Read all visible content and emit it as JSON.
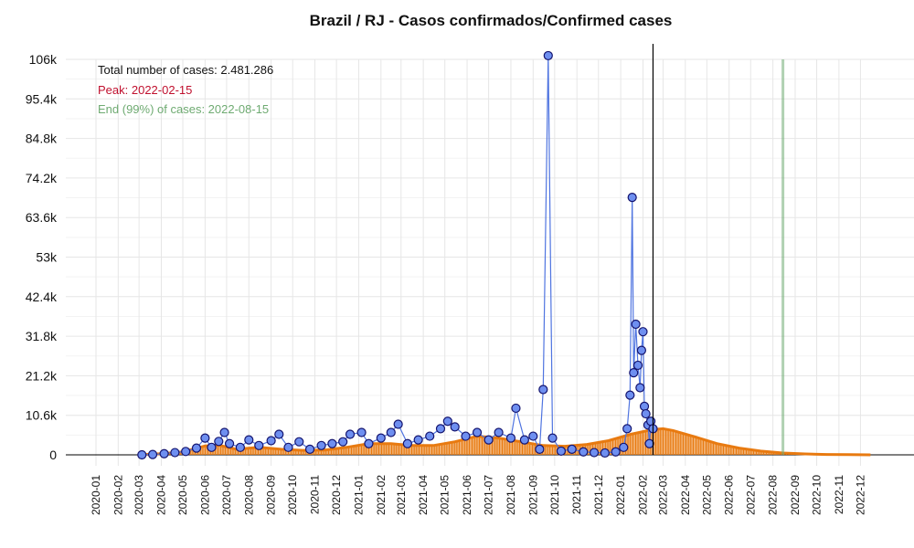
{
  "chart_data": {
    "type": "line",
    "title": "Brazil / RJ - Casos confirmados/Confirmed cases",
    "xlabel": "",
    "ylabel": "",
    "grid": true,
    "x_range": [
      "2020-01-01",
      "2022-12-31"
    ],
    "ylim": [
      0,
      106000
    ],
    "y_ticks": [
      0,
      10600,
      21200,
      31800,
      42400,
      53000,
      63600,
      74200,
      84800,
      95400,
      106000
    ],
    "y_tick_labels": [
      "0",
      "10.6k",
      "21.2k",
      "31.8k",
      "42.4k",
      "53k",
      "63.6k",
      "74.2k",
      "84.8k",
      "95.4k",
      "106k"
    ],
    "x_tick_labels": [
      "2020-01",
      "2020-02",
      "2020-03",
      "2020-04",
      "2020-05",
      "2020-06",
      "2020-07",
      "2020-08",
      "2020-09",
      "2020-10",
      "2020-11",
      "2020-12",
      "2021-01",
      "2021-02",
      "2021-03",
      "2021-04",
      "2021-05",
      "2021-06",
      "2021-07",
      "2021-08",
      "2021-09",
      "2021-10",
      "2021-11",
      "2021-12",
      "2022-01",
      "2022-02",
      "2022-03",
      "2022-04",
      "2022-05",
      "2022-06",
      "2022-07",
      "2022-08",
      "2022-09",
      "2022-10",
      "2022-11",
      "2022-12"
    ],
    "annotations": {
      "total": "Total number of cases: 2.481.286",
      "peak": "Peak: 2022-02-15",
      "end": "End (99%) of cases: 2022-08-15"
    },
    "vertical_lines": {
      "today": "2022-02-15",
      "end": "2022-08-15"
    },
    "series": [
      {
        "kind": "observed",
        "points": [
          [
            "2020-03-05",
            0
          ],
          [
            "2020-03-20",
            100
          ],
          [
            "2020-04-05",
            300
          ],
          [
            "2020-04-20",
            600
          ],
          [
            "2020-05-05",
            900
          ],
          [
            "2020-05-20",
            1800
          ],
          [
            "2020-06-01",
            4500
          ],
          [
            "2020-06-10",
            2000
          ],
          [
            "2020-06-20",
            3600
          ],
          [
            "2020-06-28",
            6000
          ],
          [
            "2020-07-05",
            3000
          ],
          [
            "2020-07-20",
            2000
          ],
          [
            "2020-08-01",
            4000
          ],
          [
            "2020-08-15",
            2500
          ],
          [
            "2020-09-01",
            3800
          ],
          [
            "2020-09-12",
            5500
          ],
          [
            "2020-09-25",
            2000
          ],
          [
            "2020-10-10",
            3500
          ],
          [
            "2020-10-25",
            1500
          ],
          [
            "2020-11-10",
            2500
          ],
          [
            "2020-11-25",
            3000
          ],
          [
            "2020-12-10",
            3500
          ],
          [
            "2020-12-20",
            5500
          ],
          [
            "2021-01-05",
            6000
          ],
          [
            "2021-01-15",
            3000
          ],
          [
            "2021-02-01",
            4500
          ],
          [
            "2021-02-15",
            6000
          ],
          [
            "2021-02-25",
            8200
          ],
          [
            "2021-03-10",
            3000
          ],
          [
            "2021-03-25",
            4000
          ],
          [
            "2021-04-10",
            5000
          ],
          [
            "2021-04-25",
            7000
          ],
          [
            "2021-05-05",
            9000
          ],
          [
            "2021-05-15",
            7500
          ],
          [
            "2021-05-30",
            5000
          ],
          [
            "2021-06-15",
            6000
          ],
          [
            "2021-07-01",
            4000
          ],
          [
            "2021-07-15",
            6000
          ],
          [
            "2021-08-01",
            4500
          ],
          [
            "2021-08-08",
            12500
          ],
          [
            "2021-08-20",
            4000
          ],
          [
            "2021-09-01",
            5000
          ],
          [
            "2021-09-10",
            1500
          ],
          [
            "2021-09-15",
            17500
          ],
          [
            "2021-09-22",
            107000
          ],
          [
            "2021-09-28",
            4500
          ],
          [
            "2021-10-10",
            1000
          ],
          [
            "2021-10-25",
            1500
          ],
          [
            "2021-11-10",
            800
          ],
          [
            "2021-11-25",
            600
          ],
          [
            "2021-12-10",
            500
          ],
          [
            "2021-12-25",
            800
          ],
          [
            "2022-01-05",
            2000
          ],
          [
            "2022-01-10",
            7000
          ],
          [
            "2022-01-14",
            16000
          ],
          [
            "2022-01-17",
            69000
          ],
          [
            "2022-01-19",
            22000
          ],
          [
            "2022-01-22",
            35000
          ],
          [
            "2022-01-25",
            24000
          ],
          [
            "2022-01-28",
            18000
          ],
          [
            "2022-01-30",
            28000
          ],
          [
            "2022-02-01",
            33000
          ],
          [
            "2022-02-03",
            13000
          ],
          [
            "2022-02-05",
            11000
          ],
          [
            "2022-02-08",
            8000
          ],
          [
            "2022-02-10",
            3000
          ],
          [
            "2022-02-12",
            9000
          ],
          [
            "2022-02-15",
            7000
          ]
        ]
      },
      {
        "kind": "fitted",
        "points": [
          [
            "2020-03-01",
            0
          ],
          [
            "2020-04-01",
            300
          ],
          [
            "2020-05-01",
            800
          ],
          [
            "2020-06-01",
            2400
          ],
          [
            "2020-06-20",
            2600
          ],
          [
            "2020-07-15",
            1500
          ],
          [
            "2020-08-15",
            2000
          ],
          [
            "2020-09-15",
            1500
          ],
          [
            "2020-10-15",
            1200
          ],
          [
            "2020-11-15",
            1300
          ],
          [
            "2020-12-15",
            2000
          ],
          [
            "2021-01-15",
            3000
          ],
          [
            "2021-02-15",
            3000
          ],
          [
            "2021-03-15",
            2500
          ],
          [
            "2021-04-15",
            2500
          ],
          [
            "2021-05-15",
            3500
          ],
          [
            "2021-06-15",
            5000
          ],
          [
            "2021-07-15",
            4500
          ],
          [
            "2021-08-15",
            3500
          ],
          [
            "2021-09-15",
            2500
          ],
          [
            "2021-10-15",
            2300
          ],
          [
            "2021-11-15",
            2800
          ],
          [
            "2021-12-15",
            3800
          ],
          [
            "2022-01-15",
            5500
          ],
          [
            "2022-02-15",
            6800
          ],
          [
            "2022-03-01",
            7000
          ],
          [
            "2022-03-15",
            6500
          ],
          [
            "2022-04-15",
            4800
          ],
          [
            "2022-05-15",
            3000
          ],
          [
            "2022-06-15",
            1800
          ],
          [
            "2022-07-15",
            1000
          ],
          [
            "2022-08-15",
            500
          ],
          [
            "2022-09-15",
            250
          ],
          [
            "2022-10-15",
            100
          ],
          [
            "2022-11-15",
            50
          ],
          [
            "2022-12-15",
            10
          ]
        ]
      }
    ],
    "colors": {
      "observed_fill": "#6e8ff0",
      "observed_stroke": "#14146e",
      "observed_line": "#4f74e0",
      "fitted": "#e87a10",
      "peak": "#c0102e",
      "end": "#6fab72"
    }
  }
}
